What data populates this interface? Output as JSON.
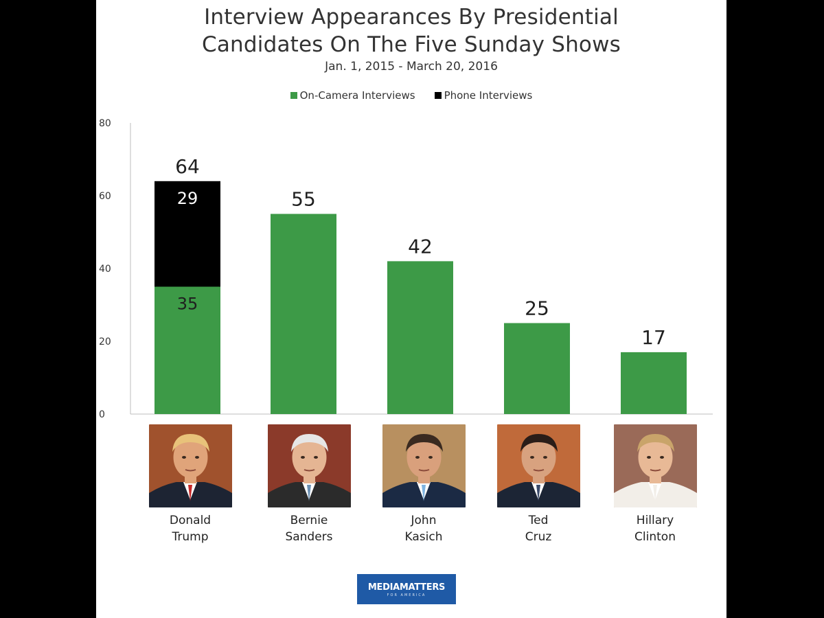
{
  "chart_data": {
    "type": "bar",
    "title_line1": "Interview Appearances By Presidential",
    "title_line2": "Candidates On The Five Sunday Shows",
    "subtitle": "Jan. 1, 2015 - March 20, 2016",
    "categories": [
      "Donald Trump",
      "Bernie Sanders",
      "John Kasich",
      "Ted Cruz",
      "Hillary Clinton"
    ],
    "series": [
      {
        "name": "On-Camera Interviews",
        "color": "#3d9a47",
        "values": [
          35,
          55,
          42,
          25,
          17
        ]
      },
      {
        "name": "Phone Interviews",
        "color": "#000000",
        "values": [
          29,
          0,
          0,
          0,
          0
        ]
      }
    ],
    "totals": [
      64,
      55,
      42,
      25,
      17
    ],
    "segment_labels": {
      "on_camera": [
        "35",
        "",
        "",
        "",
        ""
      ],
      "phone": [
        "29",
        "",
        "",
        "",
        ""
      ]
    },
    "yticks": [
      0,
      20,
      40,
      60,
      80
    ],
    "ylim": [
      0,
      80
    ],
    "xlabel": "",
    "ylabel": "",
    "stacked": true,
    "legend_position": "top-center"
  },
  "candidates": [
    {
      "first": "Donald",
      "last": "Trump",
      "skin": "#e0a47a",
      "hair": "#e8c27a",
      "suit": "#1d2433",
      "tie": "#c62828",
      "bg": "#a0522d"
    },
    {
      "first": "Bernie",
      "last": "Sanders",
      "skin": "#e5b593",
      "hair": "#e6e6e6",
      "suit": "#2b2b2b",
      "tie": "#6b8fb2",
      "bg": "#8b3a2a"
    },
    {
      "first": "John",
      "last": "Kasich",
      "skin": "#d9a07c",
      "hair": "#3a2a20",
      "suit": "#1b2a44",
      "tie": "#7fb3e0",
      "bg": "#b89060"
    },
    {
      "first": "Ted",
      "last": "Cruz",
      "skin": "#d8a27f",
      "hair": "#2a1d18",
      "suit": "#1c2535",
      "tie": "#3a4a6a",
      "bg": "#c06a3a"
    },
    {
      "first": "Hillary",
      "last": "Clinton",
      "skin": "#e8b996",
      "hair": "#c9a46a",
      "suit": "#f2eee8",
      "tie": "#f2eee8",
      "bg": "#9a6a58"
    }
  ],
  "logo": {
    "main": "MEDIAMATTERS",
    "sub": "FOR AMERICA",
    "color": "#1f5aa6"
  }
}
